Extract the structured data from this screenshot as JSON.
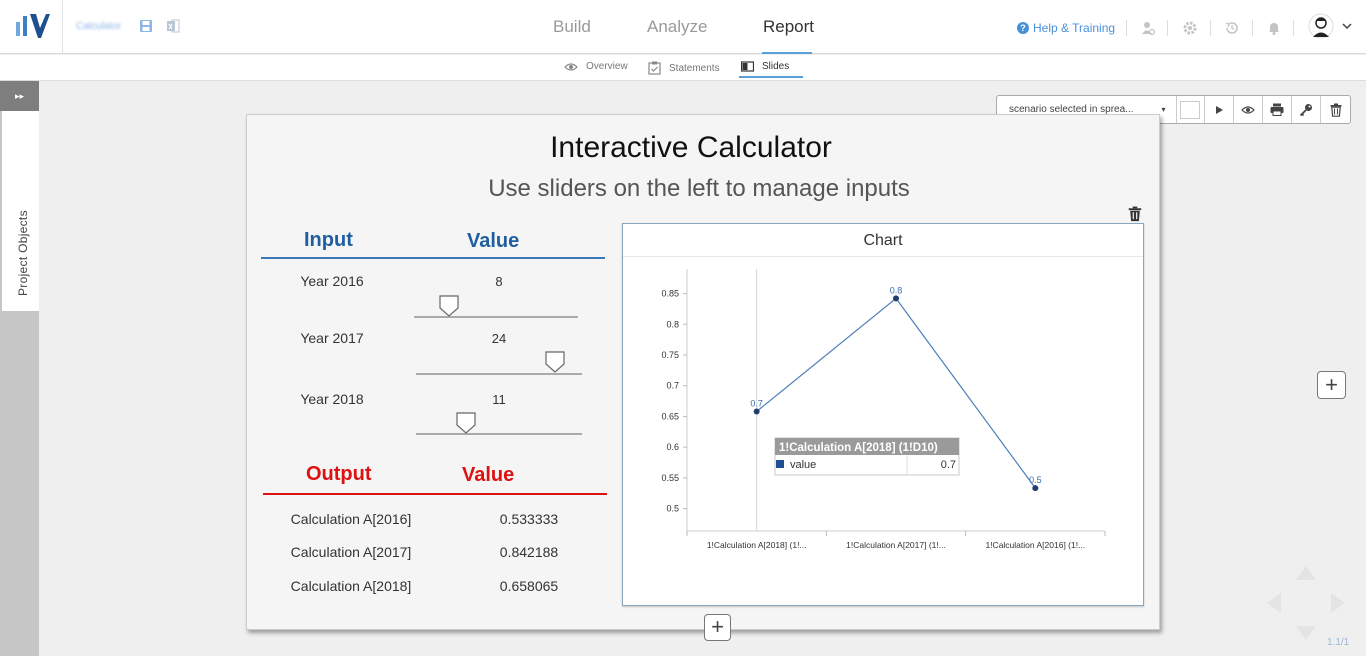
{
  "header": {
    "project_name": "Calculator",
    "nav_tabs": [
      {
        "label": "Build"
      },
      {
        "label": "Analyze"
      },
      {
        "label": "Report"
      }
    ],
    "help_label": "Help & Training",
    "help_glyph": "?"
  },
  "subtabs": [
    {
      "label": "Overview",
      "icon": "eye-icon"
    },
    {
      "label": "Statements",
      "icon": "clipboard-icon"
    },
    {
      "label": "Slides",
      "icon": "slides-icon"
    }
  ],
  "sidebar": {
    "toggle_glyph": "▸▸",
    "label": "Project Objects"
  },
  "slide_toolbar": {
    "scenario_value": "scenario selected in sprea...",
    "caret": "▾"
  },
  "slide": {
    "title": "Interactive Calculator",
    "subtitle": "Use sliders on the left to manage inputs",
    "input_header": "Input",
    "input_value_header": "Value",
    "inputs": [
      {
        "label": "Year 2016",
        "value": "8",
        "slider_fraction": 0.17
      },
      {
        "label": "Year 2017",
        "value": "24",
        "slider_fraction": 0.85
      },
      {
        "label": "Year 2018",
        "value": "11",
        "slider_fraction": 0.3
      }
    ],
    "output_header": "Output",
    "output_value_header": "Value",
    "outputs": [
      {
        "label": "Calculation A[2016]",
        "value": "0.533333"
      },
      {
        "label": "Calculation A[2017]",
        "value": "0.842188"
      },
      {
        "label": "Calculation A[2018]",
        "value": "0.658065"
      }
    ]
  },
  "chart_data": {
    "type": "line",
    "title": "Chart",
    "categories": [
      "1!Calculation A[2018] (1!...",
      "1!Calculation A[2017] (1!...",
      "1!Calculation A[2016] (1!..."
    ],
    "series": [
      {
        "name": "value",
        "values": [
          0.658065,
          0.842188,
          0.533333
        ],
        "data_labels": [
          "0.7",
          "0.8",
          "0.5"
        ],
        "color": "#4a7ebb"
      }
    ],
    "y_ticks": [
      "0.5",
      "0.55",
      "0.6",
      "0.65",
      "0.7",
      "0.75",
      "0.8",
      "0.85"
    ],
    "ylim": [
      0.47,
      0.89
    ],
    "tooltip": {
      "title": "1!Calculation A[2018] (1!D10)",
      "series": "value",
      "value": "0.7"
    }
  },
  "add_glyph": "+",
  "page_indicator": "1.1/1",
  "colors": {
    "accent": "#5aa0d8",
    "input_blue": "#1f5e9f",
    "output_red": "#dd1111",
    "series": "#4a7ebb"
  }
}
